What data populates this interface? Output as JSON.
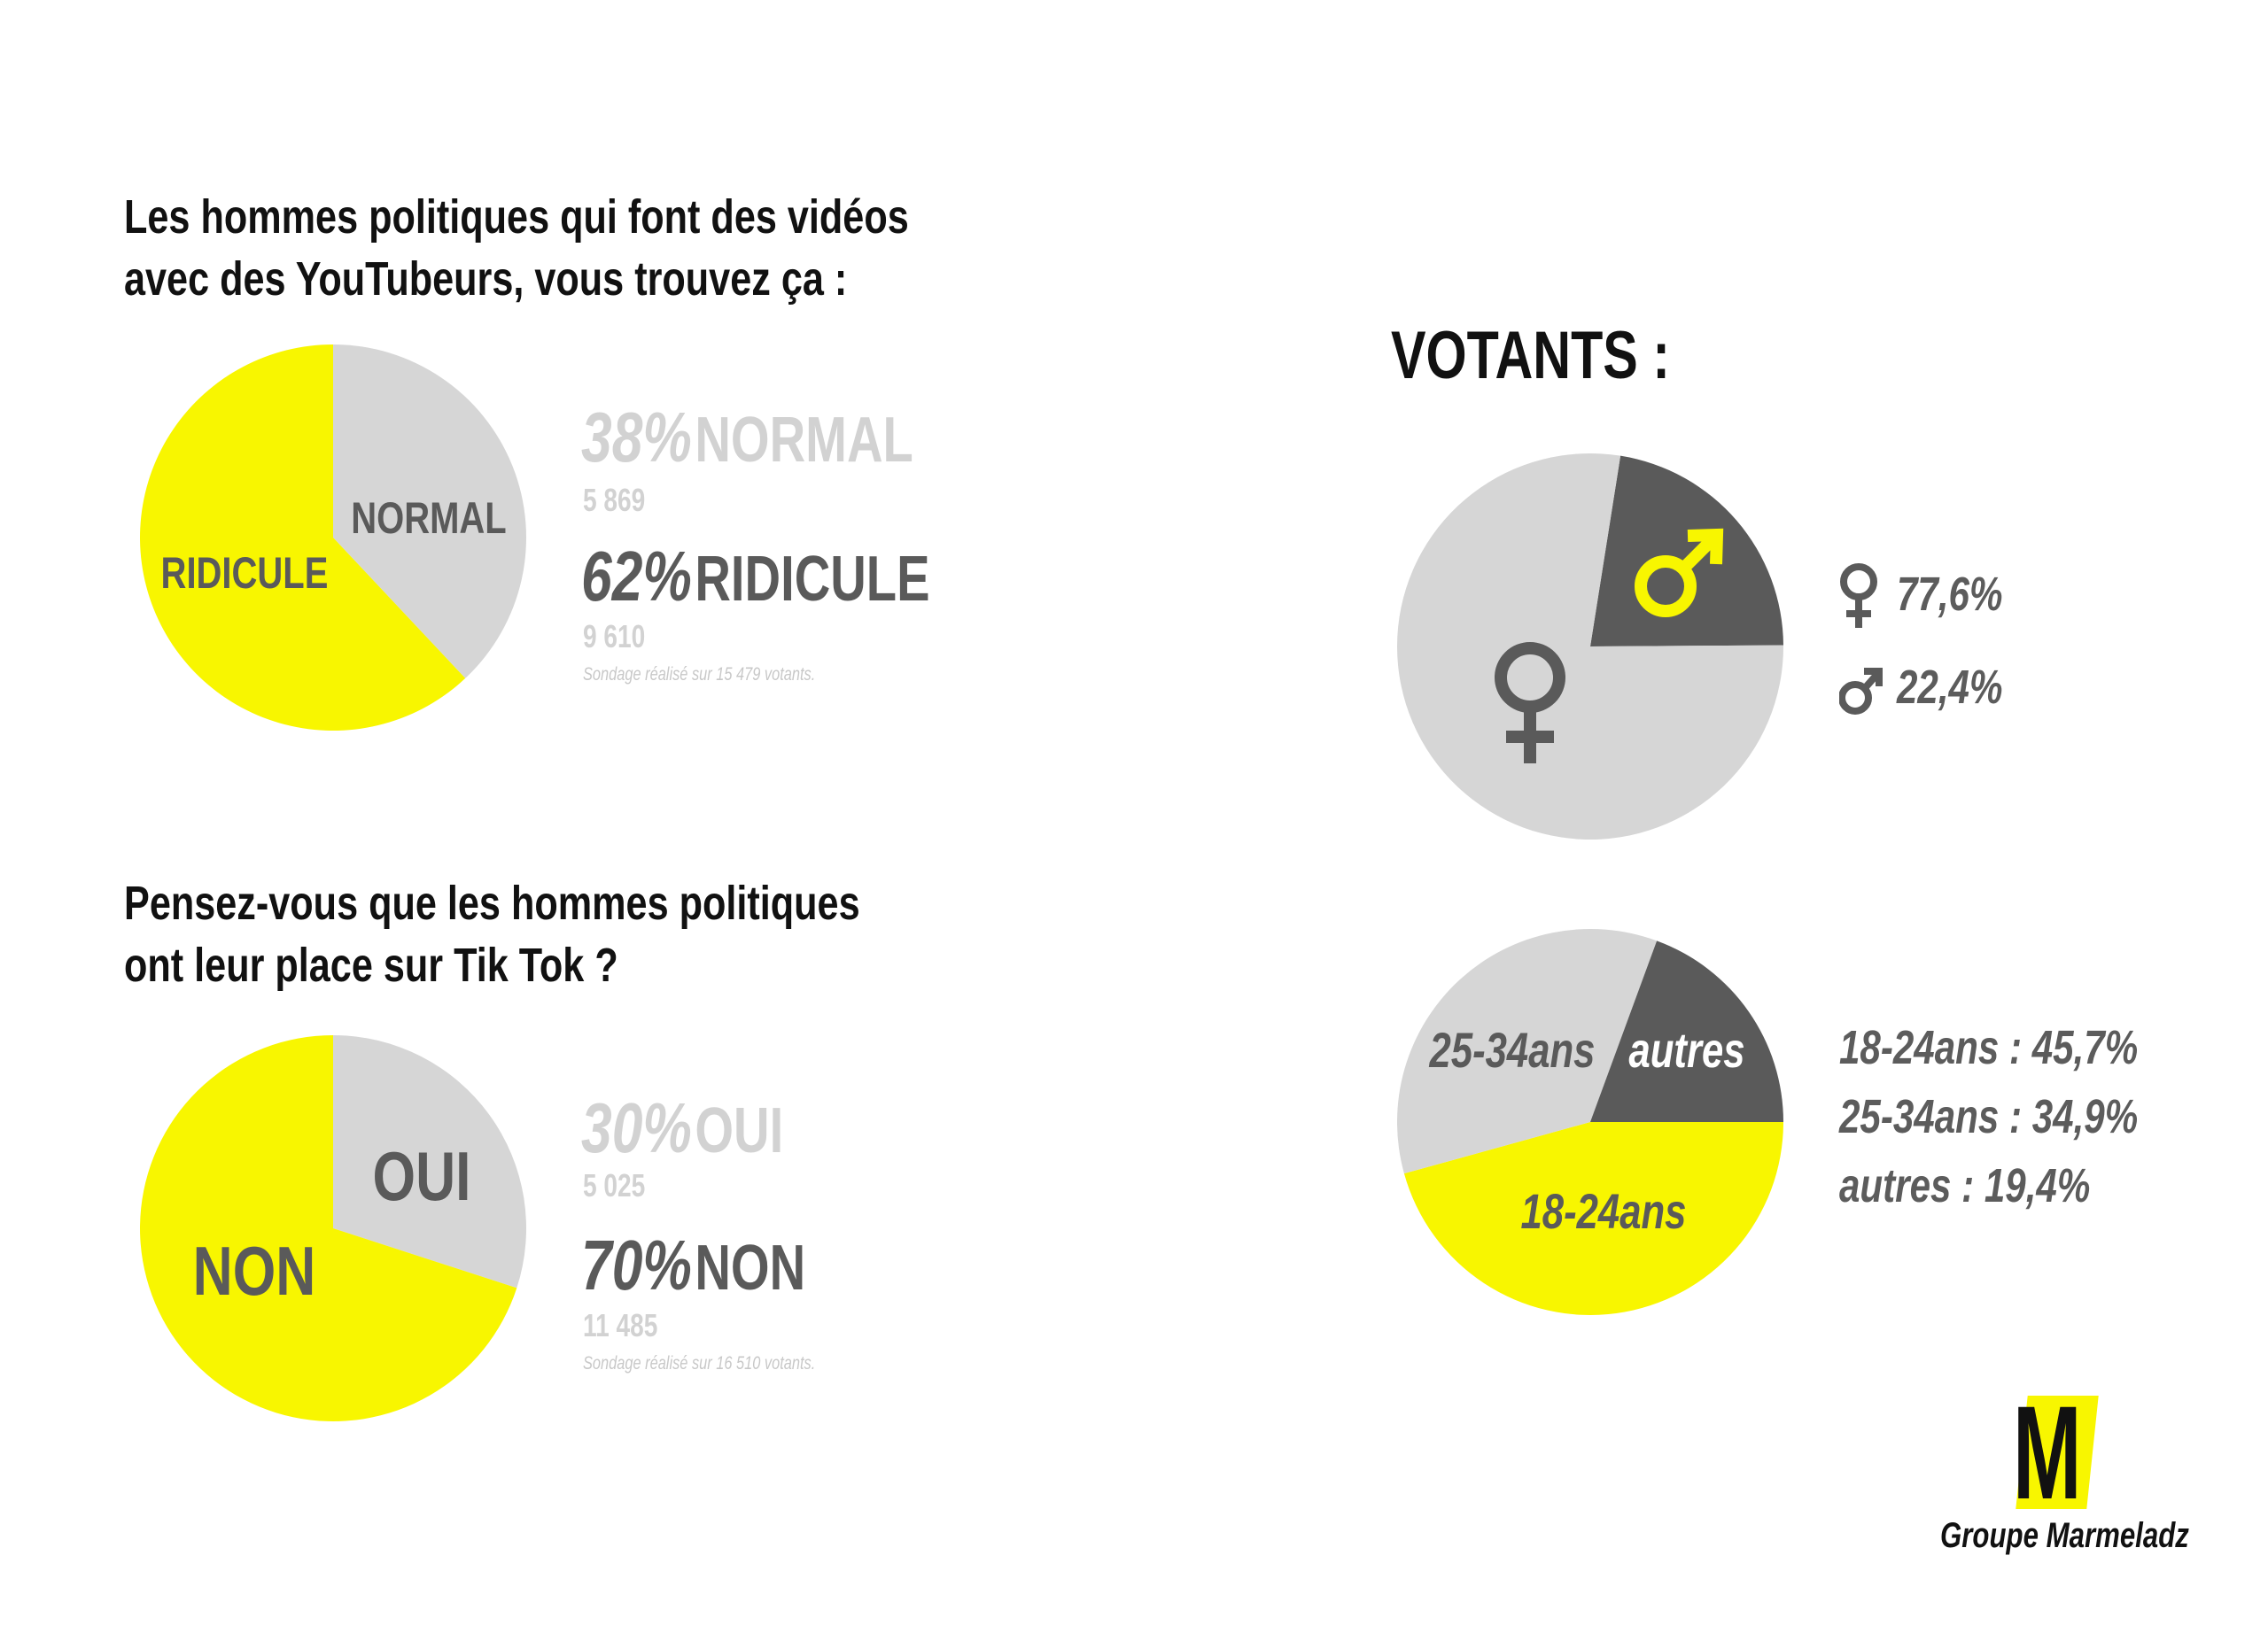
{
  "colors": {
    "yellow": "#f8f600",
    "light_grey": "#d6d6d6",
    "dark_grey": "#5a5a5a",
    "text_dark": "#111111"
  },
  "q1": {
    "title_line1": "Les hommes politiques qui font des vidéos",
    "title_line2": "avec des YouTubeurs, vous trouvez ça :",
    "rows": [
      {
        "pct": "38%",
        "label": "NORMAL",
        "count": "5 869"
      },
      {
        "pct": "62%",
        "label": "RIDICULE",
        "count": "9 610"
      }
    ],
    "note": "Sondage réalisé sur 15 479 votants."
  },
  "q2": {
    "title_line1": "Pensez-vous que les hommes politiques",
    "title_line2": "ont leur place sur Tik Tok ?",
    "rows": [
      {
        "pct": "30%",
        "label": "OUI",
        "count": "5 025"
      },
      {
        "pct": "70%",
        "label": "NON",
        "count": "11 485"
      }
    ],
    "note": "Sondage réalisé sur 16 510 votants."
  },
  "votants": {
    "title": "VOTANTS :",
    "gender_legend": [
      {
        "icon": "female-icon",
        "value": "77,6%"
      },
      {
        "icon": "male-icon",
        "value": "22,4%"
      }
    ],
    "age_legend": [
      "18-24ans : 45,7%",
      "25-34ans : 34,9%",
      "autres : 19,4%"
    ]
  },
  "logo": {
    "letter": "M",
    "name": "Groupe Marmeladz"
  },
  "chart_data": [
    {
      "type": "pie",
      "title": "Les hommes politiques qui font des vidéos avec des YouTubeurs, vous trouvez ça :",
      "slices": [
        {
          "label": "NORMAL",
          "value": 38,
          "count": 5869,
          "color": "#d6d6d6"
        },
        {
          "label": "RIDICULE",
          "value": 62,
          "count": 9610,
          "color": "#f8f600"
        }
      ],
      "start_angle": 0
    },
    {
      "type": "pie",
      "title": "Pensez-vous que les hommes politiques ont leur place sur Tik Tok ?",
      "slices": [
        {
          "label": "OUI",
          "value": 30,
          "count": 5025,
          "color": "#d6d6d6"
        },
        {
          "label": "NON",
          "value": 70,
          "count": 11485,
          "color": "#f8f600"
        }
      ],
      "start_angle": 0
    },
    {
      "type": "pie",
      "title": "VOTANTS : genre",
      "slices": [
        {
          "label": "♂",
          "value": 22.4,
          "color": "#5a5a5a"
        },
        {
          "label": "♀",
          "value": 77.6,
          "color": "#d6d6d6"
        }
      ],
      "start_angle": 9
    },
    {
      "type": "pie",
      "title": "VOTANTS : âge",
      "slices": [
        {
          "label": "18-24ans",
          "value": 45.7,
          "color": "#f8f600"
        },
        {
          "label": "25-34ans",
          "value": 34.9,
          "color": "#d6d6d6"
        },
        {
          "label": "autres",
          "value": 19.4,
          "color": "#5a5a5a"
        }
      ],
      "start_angle": 90
    }
  ]
}
